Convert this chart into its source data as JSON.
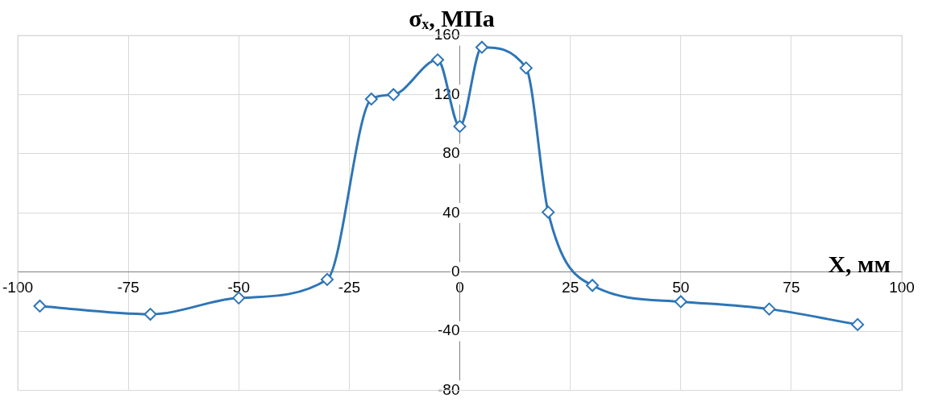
{
  "chart_data": {
    "type": "line",
    "xlabel": "X, мм",
    "ylabel": "σₓ, МПа",
    "x": [
      -95,
      -70,
      -50,
      -30,
      -20,
      -15,
      -5,
      0,
      5,
      15,
      20,
      30,
      50,
      70,
      90
    ],
    "series": [
      {
        "color": "#2e75b6",
        "values": [
          -23,
          -28.5,
          -17.5,
          -5,
          117,
          120,
          143.5,
          98.5,
          152,
          138,
          40.5,
          -9,
          -20,
          -25,
          -35.5
        ]
      }
    ],
    "xlim": [
      -100,
      100
    ],
    "xticks": [
      -100,
      -75,
      -50,
      -25,
      0,
      25,
      50,
      75,
      100
    ],
    "ylim": [
      -80,
      160
    ],
    "yticks": [
      -80,
      -40,
      0,
      40,
      80,
      120,
      160
    ],
    "grid": true,
    "legend": false,
    "marker": "diamond",
    "line_style": "solid"
  }
}
